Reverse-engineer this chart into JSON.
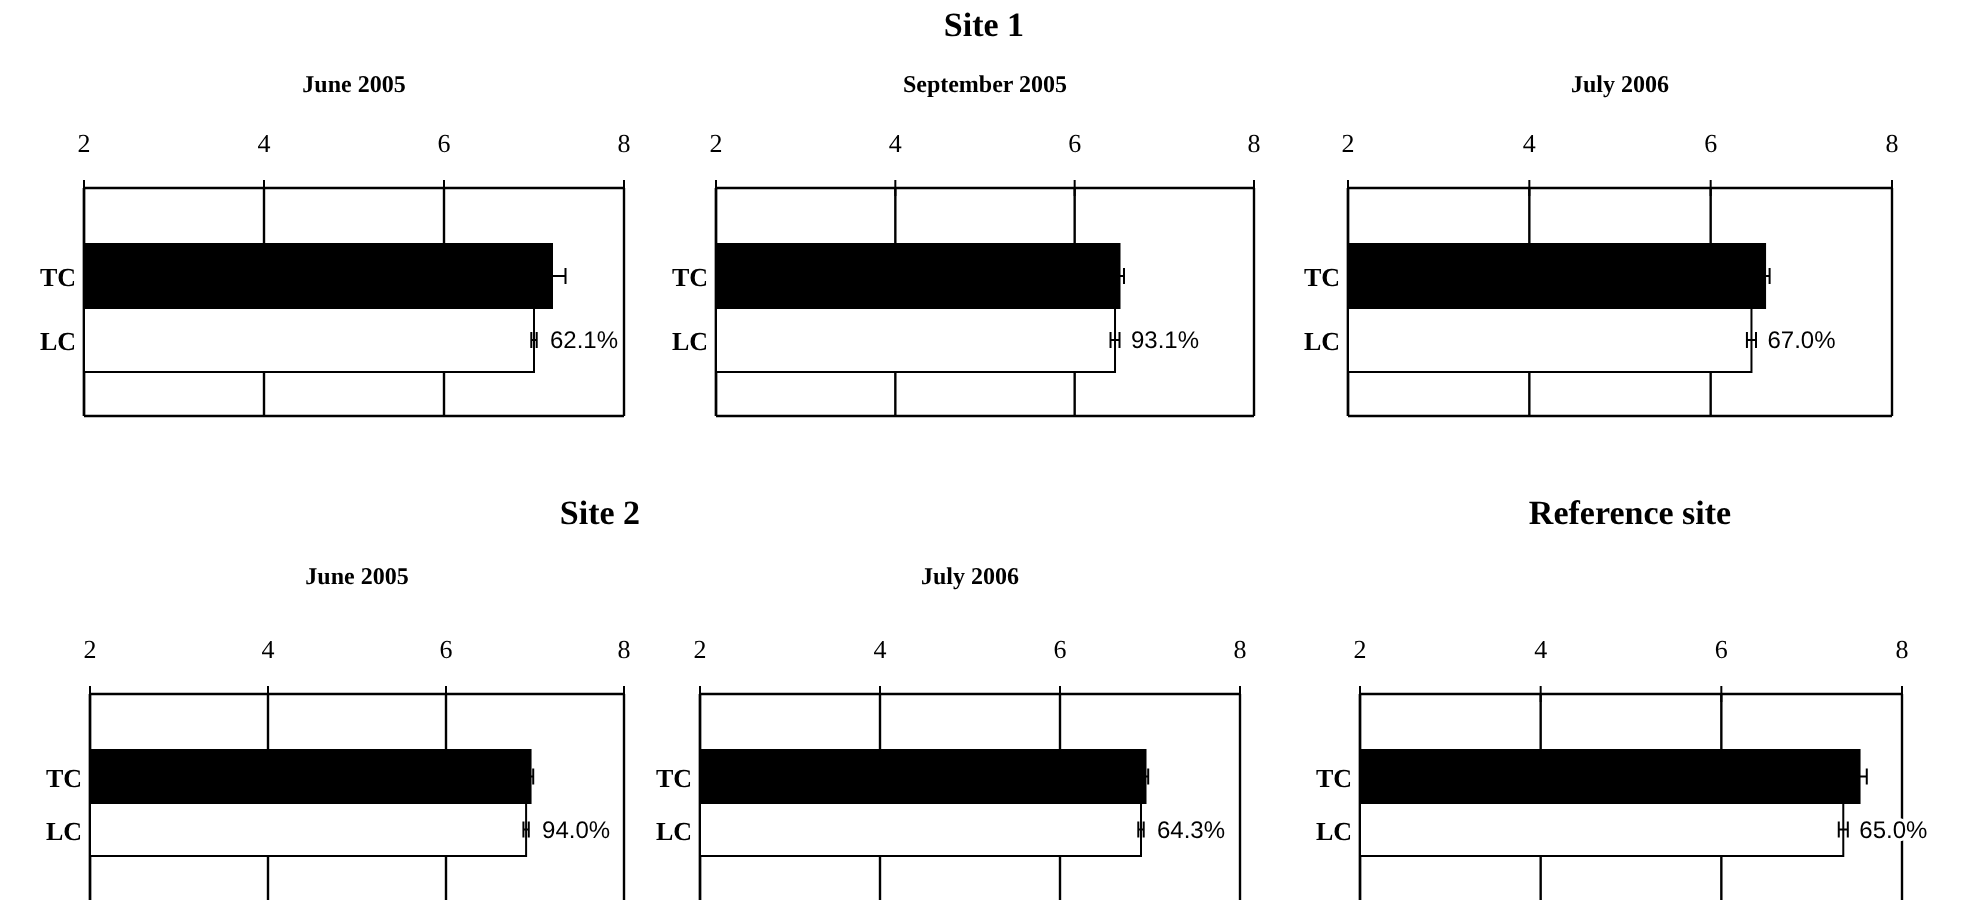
{
  "chart_data": [
    {
      "type": "bar",
      "orientation": "horizontal",
      "subtitle": "June 2005",
      "categories": [
        "TC",
        "LC"
      ],
      "values": [
        7.2,
        7.0
      ],
      "colors": [
        "#000000",
        "#ffffff"
      ],
      "errors": [
        0.15,
        0.03
      ],
      "annotations": [
        {
          "text": "62.1%",
          "x": 7.0,
          "y": "LC"
        }
      ],
      "xlim": [
        2,
        8
      ],
      "xticks": [
        2,
        4,
        6,
        8
      ],
      "grid": "x"
    },
    {
      "type": "bar",
      "orientation": "horizontal",
      "title": "Site 1",
      "subtitle": "September 2005",
      "categories": [
        "TC",
        "LC"
      ],
      "values": [
        6.5,
        6.45
      ],
      "colors": [
        "#000000",
        "#ffffff"
      ],
      "errors": [
        0.05,
        0.05
      ],
      "annotations": [
        {
          "text": "93.1%",
          "x": 6.45,
          "y": "LC"
        }
      ],
      "xlim": [
        2,
        8
      ],
      "xticks": [
        2,
        4,
        6,
        8
      ],
      "grid": "x"
    },
    {
      "type": "bar",
      "orientation": "horizontal",
      "subtitle": "July 2006",
      "categories": [
        "TC",
        "LC"
      ],
      "values": [
        6.6,
        6.45
      ],
      "colors": [
        "#000000",
        "#ffffff"
      ],
      "errors": [
        0.05,
        0.05
      ],
      "annotations": [
        {
          "text": "67.0%",
          "x": 6.45,
          "y": "LC"
        }
      ],
      "xlim": [
        2,
        8
      ],
      "xticks": [
        2,
        4,
        6,
        8
      ],
      "grid": "x"
    },
    {
      "type": "bar",
      "orientation": "horizontal",
      "title": "Site 2",
      "subtitle": "June 2005",
      "categories": [
        "TC",
        "LC"
      ],
      "values": [
        6.95,
        6.9
      ],
      "colors": [
        "#000000",
        "#ffffff"
      ],
      "errors": [
        0.03,
        0.03
      ],
      "annotations": [
        {
          "text": "94.0%",
          "x": 6.9,
          "y": "LC"
        }
      ],
      "xlim": [
        2,
        8
      ],
      "xticks": [
        2,
        4,
        6,
        8
      ],
      "grid": "x"
    },
    {
      "type": "bar",
      "orientation": "horizontal",
      "subtitle": "July 2006",
      "categories": [
        "TC",
        "LC"
      ],
      "values": [
        6.95,
        6.9
      ],
      "colors": [
        "#000000",
        "#ffffff"
      ],
      "errors": [
        0.03,
        0.03
      ],
      "annotations": [
        {
          "text": "64.3%",
          "x": 6.9,
          "y": "LC"
        }
      ],
      "xlim": [
        2,
        8
      ],
      "xticks": [
        2,
        4,
        6,
        8
      ],
      "grid": "x"
    },
    {
      "type": "bar",
      "orientation": "horizontal",
      "title": "Reference site",
      "categories": [
        "TC",
        "LC"
      ],
      "values": [
        7.53,
        7.35
      ],
      "colors": [
        "#000000",
        "#ffffff"
      ],
      "errors": [
        0.08,
        0.05
      ],
      "annotations": [
        {
          "text": "65.0%",
          "x": 7.35,
          "y": "LC"
        }
      ],
      "xlim": [
        2,
        8
      ],
      "xticks": [
        2,
        4,
        6,
        8
      ],
      "grid": "x"
    }
  ]
}
